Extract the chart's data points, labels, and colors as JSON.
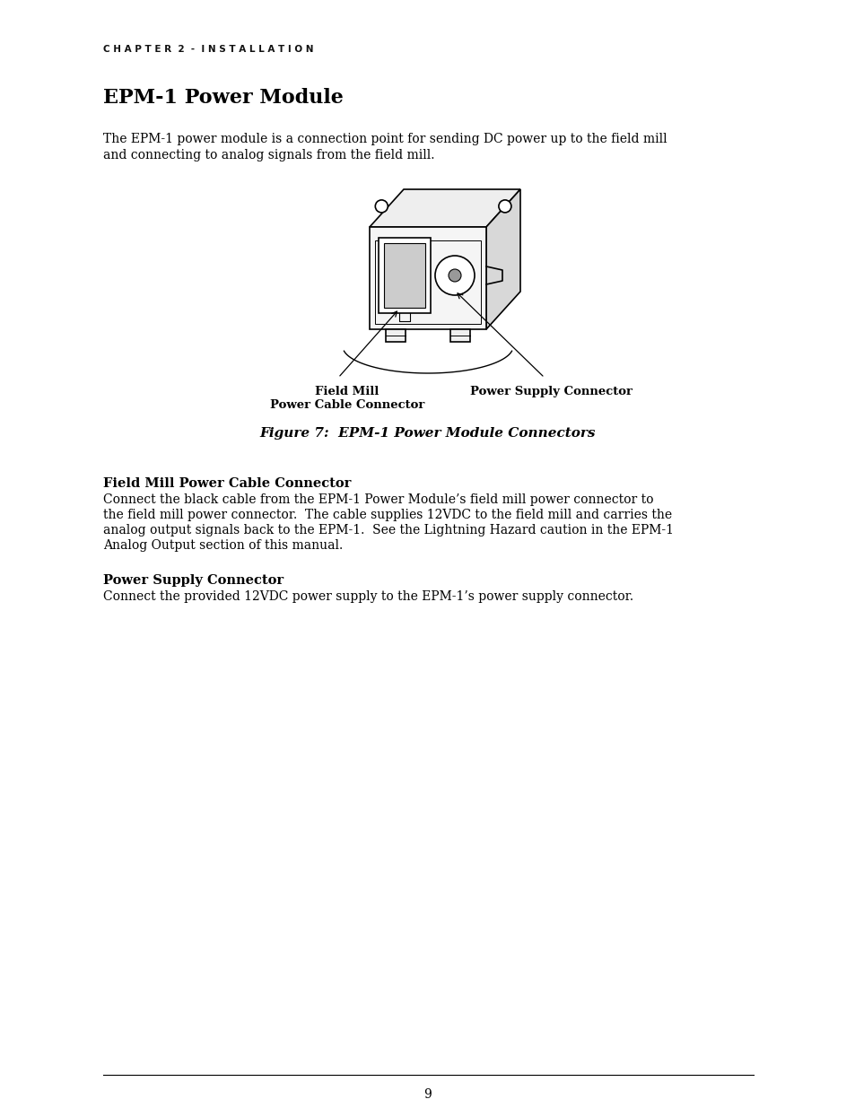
{
  "chapter_header": "C H A P T E R  2  -  I N S T A L L A T I O N",
  "section_title": "EPM-1 Power Module",
  "intro_text_line1": "The EPM-1 power module is a connection point for sending DC power up to the field mill",
  "intro_text_line2": "and connecting to analog signals from the field mill.",
  "figure_caption": "Figure 7:  EPM-1 Power Module Connectors",
  "label_left_line1": "Field Mill",
  "label_left_line2": "Power Cable Connector",
  "label_right": "Power Supply Connector",
  "section2_title": "Field Mill Power Cable Connector",
  "section2_body_line1": "Connect the black cable from the EPM-1 Power Module’s field mill power connector to",
  "section2_body_line2": "the field mill power connector.  The cable supplies 12VDC to the field mill and carries the",
  "section2_body_line3": "analog output signals back to the EPM-1.  See the Lightning Hazard caution in the EPM-1",
  "section2_body_line4": "Analog Output section of this manual.",
  "section3_title": "Power Supply Connector",
  "section3_body": "Connect the provided 12VDC power supply to the EPM-1’s power supply connector.",
  "page_number": "9",
  "bg_color": "#ffffff",
  "text_color": "#000000"
}
